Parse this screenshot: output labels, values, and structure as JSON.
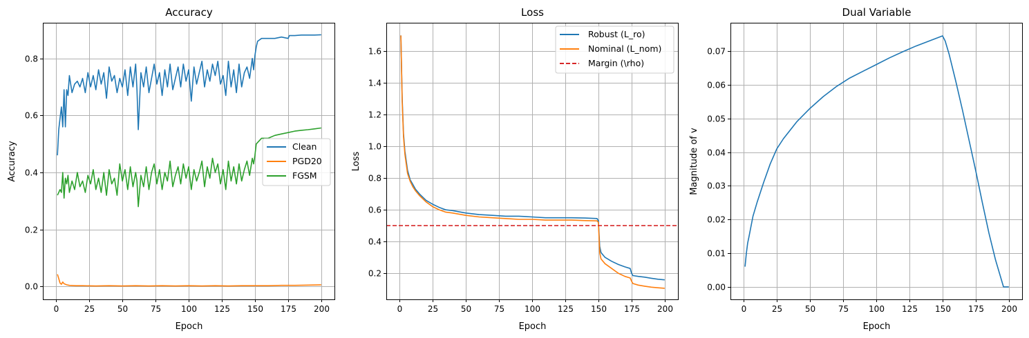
{
  "chart_data": [
    {
      "type": "line",
      "title": "Accuracy",
      "xlabel": "Epoch",
      "ylabel": "Accuracy",
      "xlim": [
        -10,
        210
      ],
      "ylim": [
        -0.045,
        0.925
      ],
      "xticks": [
        0,
        25,
        50,
        75,
        100,
        125,
        150,
        175,
        200
      ],
      "yticks": [
        0.0,
        0.2,
        0.4,
        0.6,
        0.8
      ],
      "ytick_labels": [
        "0.0",
        "0.2",
        "0.4",
        "0.6",
        "0.8"
      ],
      "grid": true,
      "legend_position": "center-right",
      "series": [
        {
          "name": "Clean",
          "color": "#1f77b4",
          "x": [
            1,
            2,
            3,
            4,
            5,
            6,
            7,
            8,
            9,
            10,
            12,
            14,
            16,
            18,
            20,
            22,
            24,
            26,
            28,
            30,
            32,
            34,
            36,
            38,
            40,
            42,
            44,
            46,
            48,
            50,
            52,
            54,
            56,
            58,
            60,
            61,
            62,
            64,
            66,
            68,
            70,
            72,
            74,
            76,
            78,
            80,
            82,
            84,
            86,
            88,
            90,
            92,
            94,
            96,
            98,
            100,
            102,
            104,
            106,
            108,
            110,
            112,
            114,
            116,
            118,
            120,
            122,
            124,
            126,
            128,
            130,
            132,
            134,
            136,
            138,
            140,
            142,
            144,
            146,
            148,
            149,
            150,
            151,
            152,
            155,
            160,
            165,
            170,
            175,
            176,
            180,
            185,
            190,
            195,
            200
          ],
          "y": [
            0.46,
            0.55,
            0.59,
            0.63,
            0.56,
            0.69,
            0.56,
            0.69,
            0.67,
            0.74,
            0.68,
            0.71,
            0.72,
            0.7,
            0.73,
            0.68,
            0.75,
            0.7,
            0.74,
            0.69,
            0.76,
            0.71,
            0.75,
            0.66,
            0.77,
            0.72,
            0.74,
            0.68,
            0.73,
            0.7,
            0.76,
            0.67,
            0.77,
            0.7,
            0.78,
            0.69,
            0.55,
            0.75,
            0.7,
            0.77,
            0.68,
            0.73,
            0.78,
            0.71,
            0.75,
            0.67,
            0.76,
            0.7,
            0.78,
            0.69,
            0.73,
            0.77,
            0.7,
            0.78,
            0.72,
            0.76,
            0.65,
            0.77,
            0.71,
            0.75,
            0.79,
            0.7,
            0.76,
            0.72,
            0.78,
            0.74,
            0.79,
            0.71,
            0.74,
            0.67,
            0.79,
            0.7,
            0.76,
            0.68,
            0.78,
            0.7,
            0.75,
            0.77,
            0.73,
            0.8,
            0.76,
            0.81,
            0.84,
            0.86,
            0.87,
            0.87,
            0.87,
            0.875,
            0.87,
            0.88,
            0.88,
            0.882,
            0.882,
            0.882,
            0.883
          ]
        },
        {
          "name": "PGD20",
          "color": "#ff7f0e",
          "x": [
            1,
            2,
            3,
            4,
            5,
            6,
            8,
            10,
            15,
            20,
            30,
            40,
            50,
            60,
            70,
            80,
            90,
            100,
            110,
            120,
            130,
            140,
            150,
            160,
            170,
            180,
            190,
            200
          ],
          "y": [
            0.043,
            0.028,
            0.012,
            0.008,
            0.016,
            0.01,
            0.006,
            0.004,
            0.003,
            0.003,
            0.002,
            0.003,
            0.002,
            0.003,
            0.002,
            0.003,
            0.002,
            0.003,
            0.002,
            0.003,
            0.002,
            0.003,
            0.003,
            0.003,
            0.004,
            0.004,
            0.005,
            0.006
          ]
        },
        {
          "name": "FGSM",
          "color": "#2ca02c",
          "x": [
            1,
            2,
            3,
            4,
            5,
            6,
            7,
            8,
            9,
            10,
            12,
            14,
            16,
            18,
            20,
            22,
            24,
            26,
            28,
            30,
            32,
            34,
            36,
            38,
            40,
            42,
            44,
            46,
            48,
            50,
            52,
            54,
            56,
            58,
            60,
            61,
            62,
            64,
            66,
            68,
            70,
            72,
            74,
            76,
            78,
            80,
            82,
            84,
            86,
            88,
            90,
            92,
            94,
            96,
            98,
            100,
            102,
            104,
            106,
            108,
            110,
            112,
            114,
            116,
            118,
            120,
            122,
            124,
            126,
            128,
            130,
            132,
            134,
            136,
            138,
            140,
            142,
            144,
            146,
            148,
            149,
            150,
            151,
            155,
            160,
            165,
            170,
            175,
            180,
            185,
            190,
            195,
            200
          ],
          "y": [
            0.32,
            0.33,
            0.34,
            0.33,
            0.4,
            0.31,
            0.38,
            0.36,
            0.39,
            0.33,
            0.37,
            0.34,
            0.4,
            0.35,
            0.37,
            0.33,
            0.39,
            0.36,
            0.41,
            0.34,
            0.38,
            0.33,
            0.4,
            0.32,
            0.41,
            0.36,
            0.38,
            0.32,
            0.43,
            0.37,
            0.41,
            0.34,
            0.42,
            0.35,
            0.4,
            0.37,
            0.28,
            0.39,
            0.35,
            0.42,
            0.34,
            0.4,
            0.43,
            0.36,
            0.41,
            0.34,
            0.4,
            0.37,
            0.44,
            0.35,
            0.39,
            0.42,
            0.36,
            0.43,
            0.38,
            0.42,
            0.34,
            0.41,
            0.37,
            0.4,
            0.44,
            0.35,
            0.42,
            0.38,
            0.45,
            0.4,
            0.43,
            0.36,
            0.41,
            0.34,
            0.44,
            0.37,
            0.42,
            0.36,
            0.43,
            0.37,
            0.41,
            0.44,
            0.39,
            0.45,
            0.43,
            0.46,
            0.5,
            0.52,
            0.52,
            0.53,
            0.535,
            0.54,
            0.545,
            0.548,
            0.55,
            0.553,
            0.556
          ]
        }
      ]
    },
    {
      "type": "line",
      "title": "Loss",
      "xlabel": "Epoch",
      "ylabel": "Loss",
      "xlim": [
        -10,
        210
      ],
      "ylim": [
        0.035,
        1.78
      ],
      "xticks": [
        0,
        25,
        50,
        75,
        100,
        125,
        150,
        175,
        200
      ],
      "yticks": [
        0.2,
        0.4,
        0.6,
        0.8,
        1.0,
        1.2,
        1.4,
        1.6
      ],
      "ytick_labels": [
        "0.2",
        "0.4",
        "0.6",
        "0.8",
        "1.0",
        "1.2",
        "1.4",
        "1.6"
      ],
      "grid": true,
      "legend_position": "top-right",
      "series": [
        {
          "name": "Robust (L_ro)",
          "color": "#1f77b4",
          "x": [
            1,
            2,
            3,
            4,
            5,
            6,
            8,
            10,
            12,
            15,
            20,
            25,
            30,
            35,
            40,
            50,
            60,
            70,
            80,
            90,
            100,
            110,
            120,
            130,
            140,
            149,
            150,
            151,
            152,
            155,
            160,
            165,
            170,
            174,
            175,
            176,
            180,
            185,
            190,
            195,
            200
          ],
          "y": [
            1.7,
            1.3,
            1.08,
            0.97,
            0.91,
            0.85,
            0.79,
            0.76,
            0.73,
            0.7,
            0.66,
            0.635,
            0.615,
            0.6,
            0.595,
            0.58,
            0.57,
            0.565,
            0.56,
            0.56,
            0.555,
            0.55,
            0.55,
            0.55,
            0.548,
            0.545,
            0.53,
            0.37,
            0.33,
            0.3,
            0.275,
            0.255,
            0.24,
            0.23,
            0.2,
            0.185,
            0.18,
            0.175,
            0.168,
            0.162,
            0.158
          ]
        },
        {
          "name": "Nominal (L_nom)",
          "color": "#ff7f0e",
          "x": [
            1,
            2,
            3,
            4,
            5,
            6,
            8,
            10,
            12,
            15,
            20,
            25,
            30,
            35,
            40,
            50,
            60,
            70,
            80,
            90,
            100,
            110,
            120,
            130,
            140,
            149,
            150,
            151,
            152,
            155,
            160,
            165,
            170,
            174,
            175,
            176,
            180,
            185,
            190,
            195,
            200
          ],
          "y": [
            1.7,
            1.28,
            1.06,
            0.95,
            0.89,
            0.83,
            0.78,
            0.745,
            0.72,
            0.69,
            0.65,
            0.62,
            0.6,
            0.585,
            0.58,
            0.565,
            0.555,
            0.55,
            0.545,
            0.54,
            0.54,
            0.535,
            0.535,
            0.535,
            0.532,
            0.53,
            0.52,
            0.33,
            0.29,
            0.26,
            0.23,
            0.2,
            0.18,
            0.17,
            0.15,
            0.135,
            0.125,
            0.118,
            0.112,
            0.108,
            0.105
          ]
        },
        {
          "name": "Margin (\\rho)",
          "color": "#d62728",
          "dashed": true,
          "x": [
            -10,
            210
          ],
          "y": [
            0.5,
            0.5
          ]
        }
      ]
    },
    {
      "type": "line",
      "title": "Dual Variable",
      "xlabel": "Epoch",
      "ylabel": "Magnitude of v",
      "xlim": [
        -10,
        210
      ],
      "ylim": [
        -0.0037,
        0.0784
      ],
      "xticks": [
        0,
        25,
        50,
        75,
        100,
        125,
        150,
        175,
        200
      ],
      "yticks": [
        0.0,
        0.01,
        0.02,
        0.03,
        0.04,
        0.05,
        0.06,
        0.07
      ],
      "ytick_labels": [
        "0.00",
        "0.01",
        "0.02",
        "0.03",
        "0.04",
        "0.05",
        "0.06",
        "0.07"
      ],
      "grid": true,
      "series": [
        {
          "name": "v",
          "color": "#1f77b4",
          "x": [
            1,
            2,
            3,
            4,
            5,
            7,
            10,
            15,
            20,
            25,
            30,
            40,
            50,
            60,
            70,
            80,
            90,
            100,
            110,
            120,
            130,
            140,
            150,
            152,
            155,
            160,
            165,
            170,
            175,
            180,
            185,
            190,
            196,
            200
          ],
          "y": [
            0.006,
            0.01,
            0.013,
            0.015,
            0.017,
            0.021,
            0.025,
            0.031,
            0.0365,
            0.041,
            0.044,
            0.049,
            0.053,
            0.0565,
            0.0595,
            0.062,
            0.064,
            0.066,
            0.068,
            0.0698,
            0.0715,
            0.073,
            0.0745,
            0.073,
            0.069,
            0.061,
            0.0525,
            0.0435,
            0.0345,
            0.025,
            0.016,
            0.008,
            0.0,
            0.0
          ]
        }
      ]
    }
  ]
}
